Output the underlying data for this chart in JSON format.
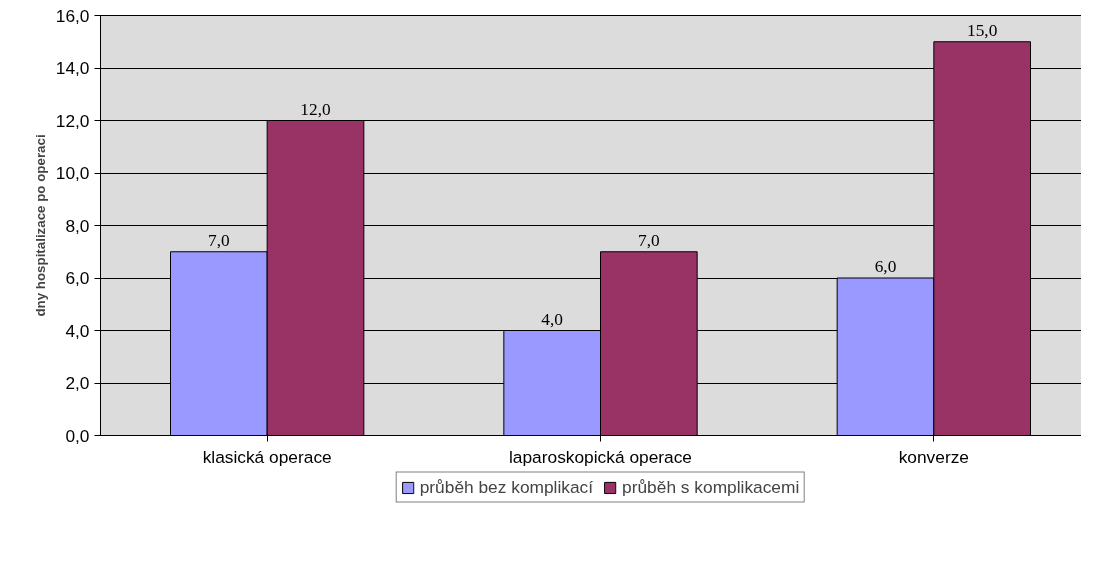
{
  "chart_data": {
    "type": "bar",
    "ylabel": "dny hospitalizace po operaci",
    "categories": [
      "klasická operace",
      "laparoskopická operace",
      "konverze"
    ],
    "series": [
      {
        "name": "průběh bez komplikací",
        "color": "#9999ff",
        "values": [
          7,
          4,
          6
        ],
        "value_labels": [
          "7,0",
          "4,0",
          "6,0"
        ]
      },
      {
        "name": "průběh s komplikacemi",
        "color": "#993366",
        "values": [
          12,
          7,
          15
        ],
        "value_labels": [
          "12,0",
          "7,0",
          "15,0"
        ]
      }
    ],
    "ylim": [
      0,
      16
    ],
    "yticks": [
      {
        "value": 0,
        "label": "0,0"
      },
      {
        "value": 2,
        "label": "2,0"
      },
      {
        "value": 4,
        "label": "4,0"
      },
      {
        "value": 6,
        "label": "6,0"
      },
      {
        "value": 8,
        "label": "8,0"
      },
      {
        "value": 10,
        "label": "10,0"
      },
      {
        "value": 12,
        "label": "12,0"
      },
      {
        "value": 14,
        "label": "14,0"
      },
      {
        "value": 16,
        "label": "16,0"
      }
    ],
    "grid": "y",
    "legend": "bottom"
  }
}
